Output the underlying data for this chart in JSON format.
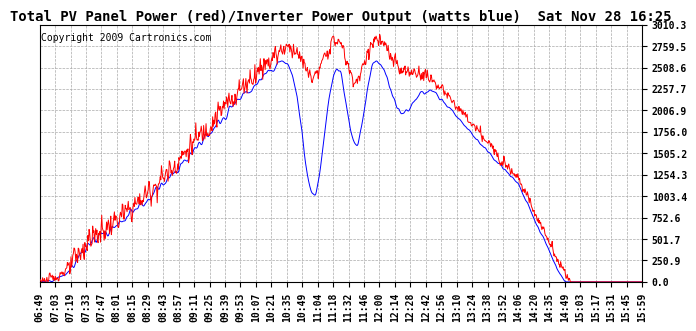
{
  "title": "Total PV Panel Power (red)/Inverter Power Output (watts blue)  Sat Nov 28 16:25",
  "copyright": "Copyright 2009 Cartronics.com",
  "ylim": [
    0.0,
    3010.3
  ],
  "yticks": [
    0.0,
    250.9,
    501.7,
    752.6,
    1003.4,
    1254.3,
    1505.2,
    1756.0,
    2006.9,
    2257.7,
    2508.6,
    2759.5,
    3010.3
  ],
  "xtick_labels": [
    "06:49",
    "07:03",
    "07:19",
    "07:33",
    "07:47",
    "08:01",
    "08:15",
    "08:29",
    "08:43",
    "08:57",
    "09:11",
    "09:25",
    "09:39",
    "09:53",
    "10:07",
    "10:21",
    "10:35",
    "10:49",
    "11:04",
    "11:18",
    "11:32",
    "11:46",
    "12:00",
    "12:14",
    "12:28",
    "12:42",
    "12:56",
    "13:10",
    "13:24",
    "13:38",
    "13:52",
    "14:06",
    "14:20",
    "14:35",
    "14:49",
    "15:03",
    "15:17",
    "15:31",
    "15:45",
    "15:59"
  ],
  "pv_color": "#ff0000",
  "inv_color": "#0000ff",
  "bg_color": "#ffffff",
  "grid_color": "#aaaaaa",
  "title_fontsize": 10,
  "tick_fontsize": 7,
  "copyright_fontsize": 7
}
